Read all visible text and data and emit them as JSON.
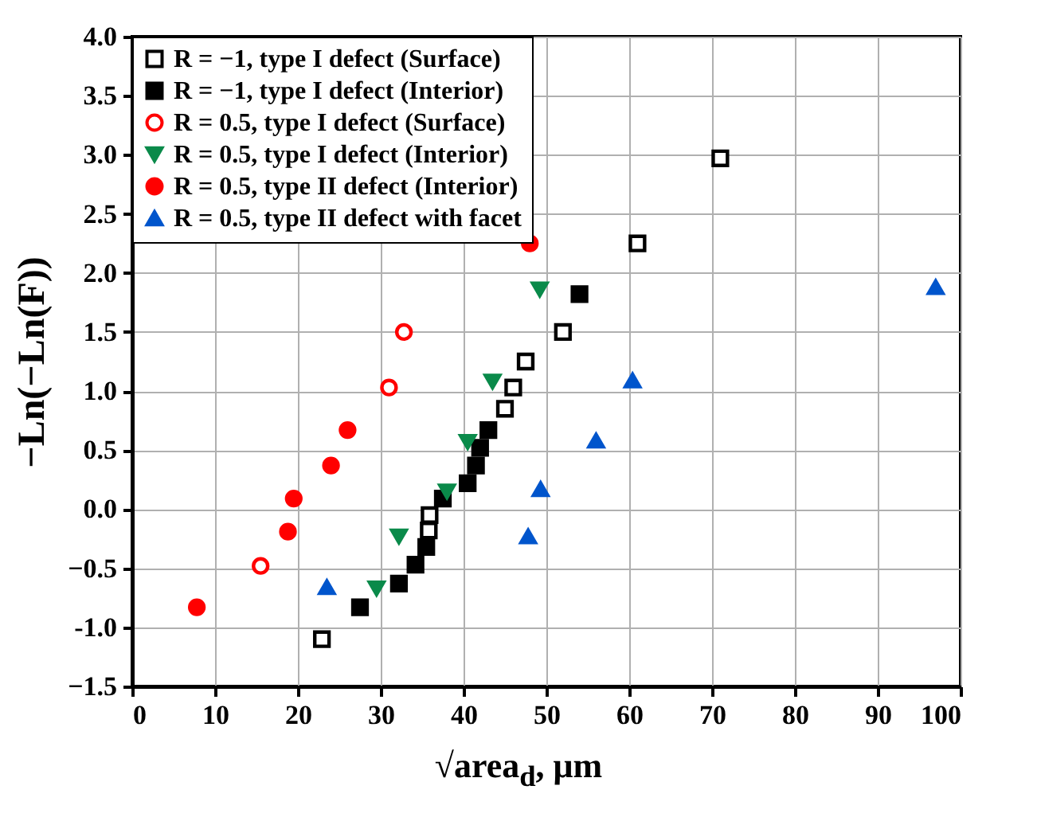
{
  "chart_data": {
    "type": "scatter",
    "xlabel": "√area$_{d}$, μm",
    "ylabel": "−Ln(−Ln(F))",
    "xlim": [
      0,
      100
    ],
    "xticks": [
      0,
      10,
      20,
      30,
      40,
      50,
      60,
      70,
      80,
      90,
      100
    ],
    "ylim": [
      -1.5,
      4.0
    ],
    "yticks": [
      -1.5,
      {
        "value": -1,
        "label": "-1.0"
      },
      -0.5,
      {
        "value": 0,
        "label": "0.0"
      },
      0.5,
      {
        "value": 1,
        "label": "1.0"
      },
      1.5,
      {
        "value": 2,
        "label": "2.0"
      },
      2.5,
      {
        "value": 3,
        "label": "3.0"
      },
      3.5,
      {
        "value": 4,
        "label": "4.0"
      }
    ],
    "grid": true,
    "legend": "top left",
    "series": [
      {
        "name": "R = −1,  type I defect (Surface)",
        "color": "#000000",
        "marker": "square-open",
        "x": [
          22.9,
          35.8,
          35.9,
          45,
          46,
          47.5,
          52,
          61,
          71
        ],
        "values": [
          -1.1,
          -0.18,
          -0.05,
          0.85,
          1.03,
          1.25,
          1.5,
          2.25,
          2.97
        ]
      },
      {
        "name": "R = −1,  type I defect (Interior)",
        "color": "#000000",
        "marker": "square",
        "x": [
          27.5,
          32.2,
          34.2,
          35.5,
          37.5,
          40.5,
          41.5,
          42,
          43,
          54
        ],
        "values": [
          -0.83,
          -0.63,
          -0.47,
          -0.32,
          0.09,
          0.22,
          0.37,
          0.52,
          0.67,
          1.82
        ]
      },
      {
        "name": "R = 0.5, type I defect (Surface)",
        "color": "#ff0000",
        "marker": "circle-open",
        "x": [
          15.5,
          31,
          32.8
        ],
        "values": [
          -0.48,
          1.03,
          1.5
        ]
      },
      {
        "name": "R = 0.5, type I defect (Interior)",
        "color": "#0a8a4a",
        "marker": "triangle-down",
        "x": [
          29.5,
          32.2,
          38,
          40.5,
          43.5,
          49.2
        ],
        "values": [
          -0.67,
          -0.23,
          0.15,
          0.57,
          1.08,
          1.86
        ]
      },
      {
        "name": "R = 0.5, type II defect (Interior)",
        "color": "#ff0000",
        "marker": "circle",
        "x": [
          7.8,
          18.8,
          19.5,
          24,
          26,
          48
        ],
        "values": [
          -0.83,
          -0.19,
          0.09,
          0.37,
          0.67,
          2.25
        ]
      },
      {
        "name": "R = 0.5, type II defect with facet",
        "color": "#0055cc",
        "marker": "triangle",
        "x": [
          23.5,
          47.8,
          49.3,
          56,
          60.4,
          97
        ],
        "values": [
          -0.66,
          -0.23,
          0.17,
          0.58,
          1.09,
          1.88
        ]
      }
    ]
  }
}
